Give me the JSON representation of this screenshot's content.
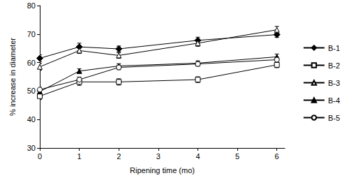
{
  "chart_data": {
    "type": "line",
    "x_label": "Ripening time (mo)",
    "y_label": "% increase in diameter",
    "x": [
      0,
      1,
      2,
      4,
      6
    ],
    "xlim": [
      0,
      6.2
    ],
    "xticks": [
      0,
      1,
      2,
      3,
      4,
      5,
      6
    ],
    "ylim": [
      30,
      80
    ],
    "yticks": [
      30,
      40,
      50,
      60,
      70,
      80
    ],
    "grid": false,
    "legend": "right",
    "series": [
      {
        "name": "B-1",
        "color": "#000000",
        "marker": "diamond",
        "values": [
          61.5,
          65.5,
          64.8,
          67.8,
          69.8
        ],
        "errors": [
          1.2,
          1.3,
          1.0,
          1.1,
          1.0
        ]
      },
      {
        "name": "B-2",
        "color": "#000000",
        "marker": "square-open",
        "values": [
          48.2,
          53.2,
          53.2,
          54.0,
          59.2
        ],
        "errors": [
          1.2,
          1.2,
          1.1,
          1.0,
          1.0
        ]
      },
      {
        "name": "B-3",
        "color": "#000000",
        "marker": "triangle-open",
        "values": [
          58.5,
          64.2,
          62.5,
          66.8,
          71.5
        ],
        "errors": [
          1.2,
          1.0,
          1.0,
          1.1,
          1.2
        ]
      },
      {
        "name": "B-4",
        "color": "#000000",
        "marker": "triangle",
        "values": [
          49.8,
          57.0,
          58.8,
          59.8,
          62.0
        ],
        "errors": [
          1.0,
          0.8,
          0.8,
          0.8,
          1.0
        ]
      },
      {
        "name": "B-5",
        "color": "#000000",
        "marker": "circle-open",
        "values": [
          50.5,
          54.0,
          58.3,
          59.5,
          61.0
        ],
        "errors": [
          0.8,
          0.9,
          0.8,
          0.8,
          0.9
        ]
      }
    ]
  }
}
